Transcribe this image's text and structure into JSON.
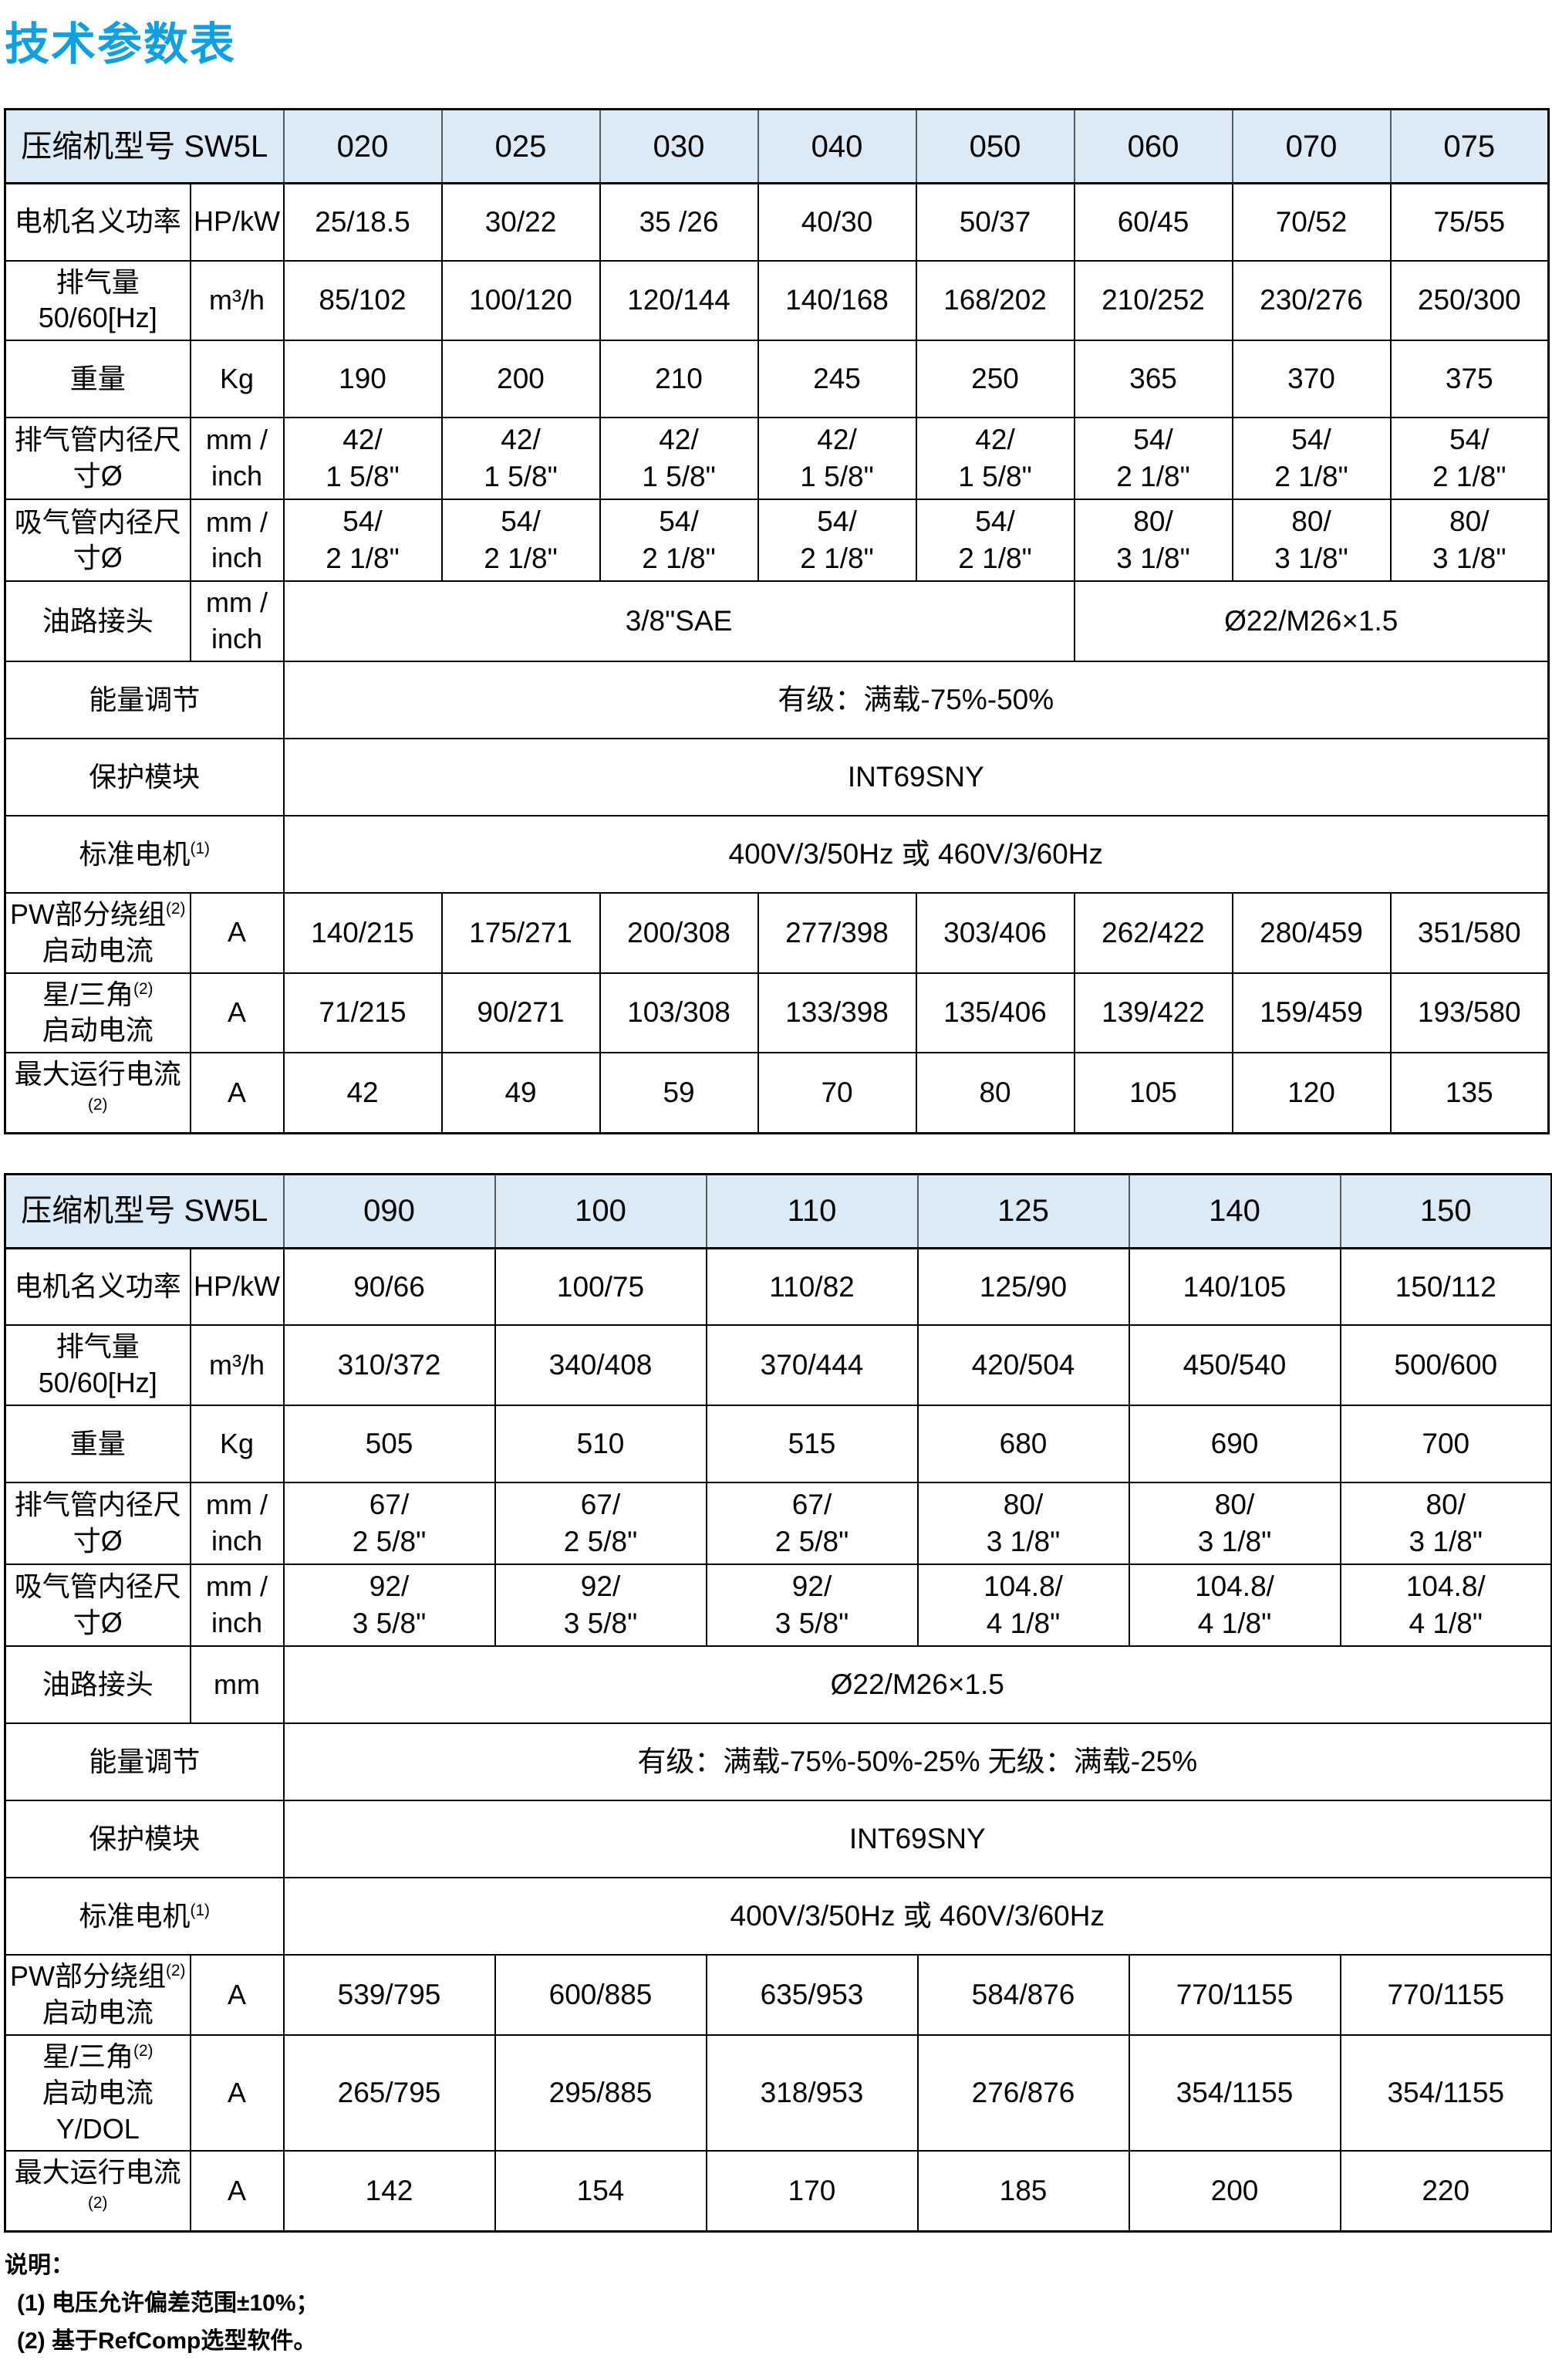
{
  "page": {
    "title": "技术参数表"
  },
  "colors": {
    "title_blue": "#10a0df",
    "header_bg": "#dceaf6",
    "header_border": "#55585c",
    "grid_black": "#000000"
  },
  "table1": {
    "header_label": "压缩机型号 SW5L",
    "models": [
      "020",
      "025",
      "030",
      "040",
      "050",
      "060",
      "070",
      "075"
    ],
    "rows": {
      "power": {
        "label": "电机名义功率",
        "unit": "HP/kW",
        "values": [
          "25/18.5",
          "30/22",
          "35 /26",
          "40/30",
          "50/37",
          "60/45",
          "70/52",
          "75/55"
        ]
      },
      "displacement": {
        "label": "排气量\n50/60[Hz]",
        "unit": "m³/h",
        "values": [
          "85/102",
          "100/120",
          "120/144",
          "140/168",
          "168/202",
          "210/252",
          "230/276",
          "250/300"
        ]
      },
      "weight": {
        "label": "重量",
        "unit": "Kg",
        "values": [
          "190",
          "200",
          "210",
          "245",
          "250",
          "365",
          "370",
          "375"
        ]
      },
      "discharge": {
        "label": "排气管内径尺寸Ø",
        "unit": "mm /\ninch",
        "values": [
          "42/\n1 5/8\"",
          "42/\n1 5/8\"",
          "42/\n1 5/8\"",
          "42/\n1 5/8\"",
          "42/\n1 5/8\"",
          "54/\n2 1/8\"",
          "54/\n2 1/8\"",
          "54/\n2 1/8\""
        ]
      },
      "suction": {
        "label": "吸气管内径尺寸Ø",
        "unit": "mm /\ninch",
        "values": [
          "54/\n2 1/8\"",
          "54/\n2 1/8\"",
          "54/\n2 1/8\"",
          "54/\n2 1/8\"",
          "54/\n2 1/8\"",
          "80/\n3 1/8\"",
          "80/\n3 1/8\"",
          "80/\n3 1/8\""
        ]
      },
      "oil": {
        "label": "油路接头",
        "unit": "mm /\ninch",
        "value_left": "3/8\"SAE",
        "value_right": "Ø22/M26×1.5"
      },
      "capacity": {
        "label": "能量调节",
        "value": "有级：满载-75%-50%"
      },
      "protection": {
        "label": "保护模块",
        "value": "INT69SNY"
      },
      "motor": {
        "label": "标准电机",
        "sup": "(1)",
        "value": "400V/3/50Hz 或 460V/3/60Hz"
      },
      "pw_start": {
        "label": "PW部分绕组",
        "sup": "(2)",
        "label2": "启动电流",
        "unit": "A",
        "values": [
          "140/215",
          "175/271",
          "200/308",
          "277/398",
          "303/406",
          "262/422",
          "280/459",
          "351/580"
        ]
      },
      "star_delta": {
        "label": "星/三角",
        "sup": "(2)",
        "label2": "启动电流",
        "unit": "A",
        "values": [
          "71/215",
          "90/271",
          "103/308",
          "133/398",
          "135/406",
          "139/422",
          "159/459",
          "193/580"
        ]
      },
      "max_current": {
        "label": "最大运行电流",
        "sup": "(2)",
        "unit": "A",
        "values": [
          "42",
          "49",
          "59",
          "70",
          "80",
          "105",
          "120",
          "135"
        ]
      }
    }
  },
  "table2": {
    "header_label": "压缩机型号 SW5L",
    "models": [
      "090",
      "100",
      "110",
      "125",
      "140",
      "150"
    ],
    "rows": {
      "power": {
        "label": "电机名义功率",
        "unit": "HP/kW",
        "values": [
          "90/66",
          "100/75",
          "110/82",
          "125/90",
          "140/105",
          "150/112"
        ]
      },
      "displacement": {
        "label": "排气量\n50/60[Hz]",
        "unit": "m³/h",
        "values": [
          "310/372",
          "340/408",
          "370/444",
          "420/504",
          "450/540",
          "500/600"
        ]
      },
      "weight": {
        "label": "重量",
        "unit": "Kg",
        "values": [
          "505",
          "510",
          "515",
          "680",
          "690",
          "700"
        ]
      },
      "discharge": {
        "label": "排气管内径尺寸Ø",
        "unit": "mm /\ninch",
        "values": [
          "67/\n2 5/8\"",
          "67/\n2 5/8\"",
          "67/\n2 5/8\"",
          "80/\n3 1/8\"",
          "80/\n3 1/8\"",
          "80/\n3 1/8\""
        ]
      },
      "suction": {
        "label": "吸气管内径尺寸Ø",
        "unit": "mm /\ninch",
        "values": [
          "92/\n3 5/8\"",
          "92/\n3 5/8\"",
          "92/\n3 5/8\"",
          "104.8/\n4 1/8\"",
          "104.8/\n4 1/8\"",
          "104.8/\n4 1/8\""
        ]
      },
      "oil": {
        "label": "油路接头",
        "unit": "mm",
        "value": "Ø22/M26×1.5"
      },
      "capacity": {
        "label": "能量调节",
        "value": "有级：满载-75%-50%-25% 无级：满载-25%"
      },
      "protection": {
        "label": "保护模块",
        "value": "INT69SNY"
      },
      "motor": {
        "label": "标准电机",
        "sup": "(1)",
        "value": "400V/3/50Hz 或 460V/3/60Hz"
      },
      "pw_start": {
        "label": "PW部分绕组",
        "sup": "(2)",
        "label2": "启动电流",
        "unit": "A",
        "values": [
          "539/795",
          "600/885",
          "635/953",
          "584/876",
          "770/1155",
          "770/1155"
        ]
      },
      "star_delta": {
        "label": "星/三角",
        "sup": "(2)",
        "label2": "启动电流Y/DOL",
        "unit": "A",
        "values": [
          "265/795",
          "295/885",
          "318/953",
          "276/876",
          "354/1155",
          "354/1155"
        ]
      },
      "max_current": {
        "label": "最大运行电流",
        "sup": "(2)",
        "unit": "A",
        "values": [
          "142",
          "154",
          "170",
          "185",
          "200",
          "220"
        ]
      }
    }
  },
  "notes": {
    "title": "说明：",
    "items": [
      "(1) 电压允许偏差范围±10%；",
      "(2) 基于RefComp选型软件。"
    ]
  }
}
